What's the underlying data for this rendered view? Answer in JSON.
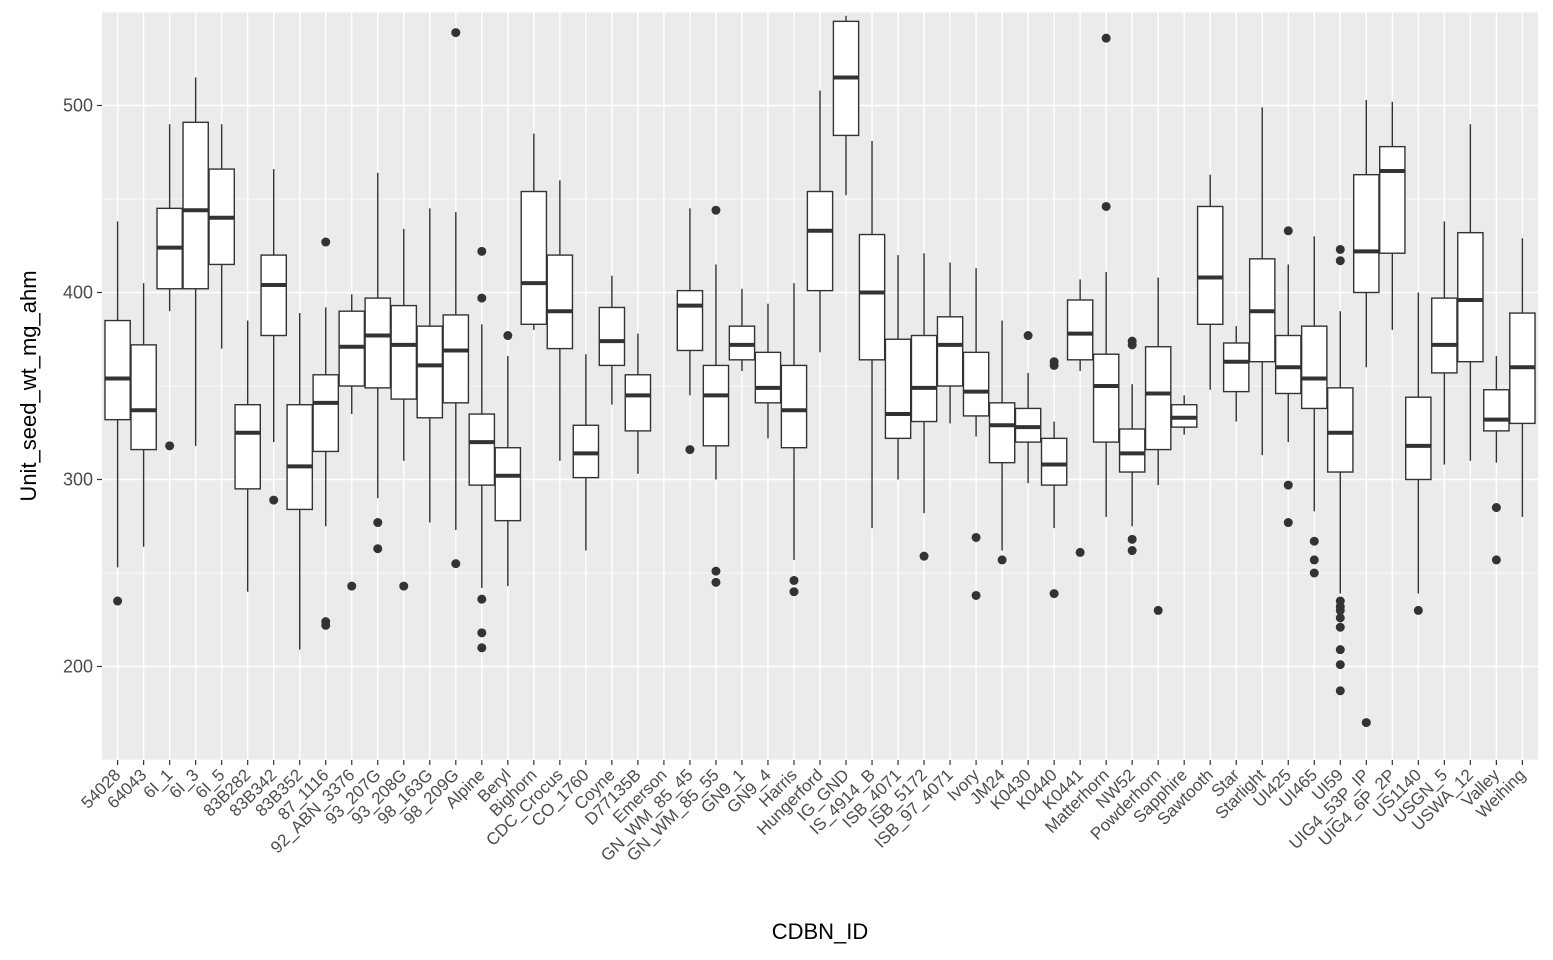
{
  "chart_data": {
    "type": "box",
    "xlabel": "CDBN_ID",
    "ylabel": "Unit_seed_wt_mg_ahm",
    "ylim": [
      150,
      550
    ],
    "y_ticks": [
      200,
      300,
      400,
      500
    ],
    "grid": true,
    "panel_background": "#ebebeb",
    "box_fill": "#ffffff",
    "line_color": "#333333",
    "categories": [
      "54028",
      "64043",
      "6I_1",
      "6I_3",
      "6I_5",
      "83B282",
      "83B342",
      "83B352",
      "87_1116",
      "92_ABN_3376",
      "93_207G",
      "93_208G",
      "98_163G",
      "98_209G",
      "Alpine",
      "Beryl",
      "Bighorn",
      "CDC_Crocus",
      "CO_1760",
      "Coyne",
      "D77135B",
      "Emerson",
      "GN_WM_85_45",
      "GN_WM_85_55",
      "GN9_1",
      "GN9_4",
      "Harris",
      "Hungerford",
      "IG_GND",
      "IS_4914_B",
      "ISB_4071",
      "ISB_5172",
      "ISB_97_4071",
      "Ivory",
      "JM24",
      "K0430",
      "K0440",
      "K0441",
      "Matterhorn",
      "NW52",
      "Powderhorn",
      "Sapphire",
      "Sawtooth",
      "Star",
      "Starlight",
      "UI425",
      "UI465",
      "UI59",
      "UIG4_53P_IP",
      "UIG4_6P_2P",
      "US1140",
      "USGN_5",
      "USWA_12",
      "Valley",
      "Weihing"
    ],
    "boxes": [
      {
        "min": 253,
        "q1": 332,
        "median": 354,
        "q3": 385,
        "max": 438,
        "outliers": [
          235
        ]
      },
      {
        "min": 264,
        "q1": 316,
        "median": 337,
        "q3": 372,
        "max": 405,
        "outliers": []
      },
      {
        "min": 390,
        "q1": 402,
        "median": 424,
        "q3": 445,
        "max": 490,
        "outliers": [
          318
        ]
      },
      {
        "min": 318,
        "q1": 402,
        "median": 444,
        "q3": 491,
        "max": 515,
        "outliers": []
      },
      {
        "min": 370,
        "q1": 415,
        "median": 440,
        "q3": 466,
        "max": 490,
        "outliers": []
      },
      {
        "min": 240,
        "q1": 295,
        "median": 325,
        "q3": 340,
        "max": 385,
        "outliers": []
      },
      {
        "min": 320,
        "q1": 377,
        "median": 404,
        "q3": 420,
        "max": 466,
        "outliers": [
          289
        ]
      },
      {
        "min": 209,
        "q1": 284,
        "median": 307,
        "q3": 340,
        "max": 389,
        "outliers": []
      },
      {
        "min": 275,
        "q1": 315,
        "median": 341,
        "q3": 356,
        "max": 392,
        "outliers": [
          427,
          224,
          222
        ]
      },
      {
        "min": 335,
        "q1": 350,
        "median": 371,
        "q3": 390,
        "max": 399,
        "outliers": [
          243
        ]
      },
      {
        "min": 290,
        "q1": 349,
        "median": 377,
        "q3": 397,
        "max": 464,
        "outliers": [
          277,
          263
        ]
      },
      {
        "min": 310,
        "q1": 343,
        "median": 372,
        "q3": 393,
        "max": 434,
        "outliers": [
          243
        ]
      },
      {
        "min": 277,
        "q1": 333,
        "median": 361,
        "q3": 382,
        "max": 445,
        "outliers": []
      },
      {
        "min": 273,
        "q1": 341,
        "median": 369,
        "q3": 388,
        "max": 443,
        "outliers": [
          539,
          255
        ]
      },
      {
        "min": 242,
        "q1": 297,
        "median": 320,
        "q3": 335,
        "max": 383,
        "outliers": [
          422,
          397,
          236,
          218,
          210
        ]
      },
      {
        "min": 243,
        "q1": 278,
        "median": 302,
        "q3": 317,
        "max": 366,
        "outliers": [
          377
        ]
      },
      {
        "min": 380,
        "q1": 383,
        "median": 405,
        "q3": 454,
        "max": 485,
        "outliers": []
      },
      {
        "min": 310,
        "q1": 370,
        "median": 390,
        "q3": 420,
        "max": 460,
        "outliers": []
      },
      {
        "min": 262,
        "q1": 301,
        "median": 314,
        "q3": 329,
        "max": 367,
        "outliers": []
      },
      {
        "min": 340,
        "q1": 361,
        "median": 374,
        "q3": 392,
        "max": 409,
        "outliers": []
      },
      {
        "min": 303,
        "q1": 326,
        "median": 345,
        "q3": 356,
        "max": 378,
        "outliers": []
      },
      {
        "min": null,
        "q1": null,
        "median": null,
        "q3": null,
        "max": null,
        "outliers": []
      },
      {
        "min": 345,
        "q1": 369,
        "median": 393,
        "q3": 401,
        "max": 445,
        "outliers": [
          316
        ]
      },
      {
        "min": 300,
        "q1": 318,
        "median": 345,
        "q3": 361,
        "max": 415,
        "outliers": [
          444,
          251,
          245
        ]
      },
      {
        "min": 358,
        "q1": 364,
        "median": 372,
        "q3": 382,
        "max": 402,
        "outliers": []
      },
      {
        "min": 322,
        "q1": 341,
        "median": 349,
        "q3": 368,
        "max": 394,
        "outliers": []
      },
      {
        "min": 257,
        "q1": 317,
        "median": 337,
        "q3": 361,
        "max": 405,
        "outliers": [
          246,
          240
        ]
      },
      {
        "min": 368,
        "q1": 401,
        "median": 433,
        "q3": 454,
        "max": 508,
        "outliers": []
      },
      {
        "min": 452,
        "q1": 484,
        "median": 515,
        "q3": 545,
        "max": 548,
        "outliers": []
      },
      {
        "min": 274,
        "q1": 364,
        "median": 400,
        "q3": 431,
        "max": 481,
        "outliers": []
      },
      {
        "min": 300,
        "q1": 322,
        "median": 335,
        "q3": 375,
        "max": 420,
        "outliers": []
      },
      {
        "min": 282,
        "q1": 331,
        "median": 349,
        "q3": 377,
        "max": 421,
        "outliers": [
          259
        ]
      },
      {
        "min": 330,
        "q1": 350,
        "median": 372,
        "q3": 387,
        "max": 416,
        "outliers": []
      },
      {
        "min": 323,
        "q1": 334,
        "median": 347,
        "q3": 368,
        "max": 413,
        "outliers": [
          269,
          238
        ]
      },
      {
        "min": 262,
        "q1": 309,
        "median": 329,
        "q3": 341,
        "max": 385,
        "outliers": [
          257
        ]
      },
      {
        "min": 298,
        "q1": 320,
        "median": 328,
        "q3": 338,
        "max": 357,
        "outliers": [
          377
        ]
      },
      {
        "min": 274,
        "q1": 297,
        "median": 308,
        "q3": 322,
        "max": 331,
        "outliers": [
          363,
          361,
          239
        ]
      },
      {
        "min": 358,
        "q1": 364,
        "median": 378,
        "q3": 396,
        "max": 407,
        "outliers": [
          261
        ]
      },
      {
        "min": 280,
        "q1": 320,
        "median": 350,
        "q3": 367,
        "max": 411,
        "outliers": [
          536,
          446
        ]
      },
      {
        "min": 275,
        "q1": 304,
        "median": 314,
        "q3": 327,
        "max": 351,
        "outliers": [
          374,
          372,
          268,
          262
        ]
      },
      {
        "min": 297,
        "q1": 316,
        "median": 346,
        "q3": 371,
        "max": 408,
        "outliers": [
          230
        ]
      },
      {
        "min": 324,
        "q1": 328,
        "median": 333,
        "q3": 340,
        "max": 345,
        "outliers": []
      },
      {
        "min": 348,
        "q1": 383,
        "median": 408,
        "q3": 446,
        "max": 463,
        "outliers": []
      },
      {
        "min": 331,
        "q1": 347,
        "median": 363,
        "q3": 373,
        "max": 382,
        "outliers": []
      },
      {
        "min": 313,
        "q1": 363,
        "median": 390,
        "q3": 418,
        "max": 499,
        "outliers": []
      },
      {
        "min": 320,
        "q1": 346,
        "median": 360,
        "q3": 377,
        "max": 415,
        "outliers": [
          433,
          297,
          277
        ]
      },
      {
        "min": 283,
        "q1": 338,
        "median": 354,
        "q3": 382,
        "max": 430,
        "outliers": [
          267,
          257,
          250
        ]
      },
      {
        "min": 239,
        "q1": 304,
        "median": 325,
        "q3": 349,
        "max": 390,
        "outliers": [
          423,
          417,
          235,
          232,
          230,
          226,
          221,
          209,
          201,
          187
        ]
      },
      {
        "min": 360,
        "q1": 400,
        "median": 422,
        "q3": 463,
        "max": 503,
        "outliers": [
          170
        ]
      },
      {
        "min": 380,
        "q1": 421,
        "median": 465,
        "q3": 478,
        "max": 502,
        "outliers": []
      },
      {
        "min": 239,
        "q1": 300,
        "median": 318,
        "q3": 344,
        "max": 400,
        "outliers": [
          230
        ]
      },
      {
        "min": 308,
        "q1": 357,
        "median": 372,
        "q3": 397,
        "max": 438,
        "outliers": []
      },
      {
        "min": 310,
        "q1": 363,
        "median": 396,
        "q3": 432,
        "max": 490,
        "outliers": []
      },
      {
        "min": 309,
        "q1": 326,
        "median": 332,
        "q3": 348,
        "max": 366,
        "outliers": [
          285,
          257
        ]
      },
      {
        "min": 280,
        "q1": 330,
        "median": 360,
        "q3": 389,
        "max": 429,
        "outliers": []
      }
    ]
  }
}
